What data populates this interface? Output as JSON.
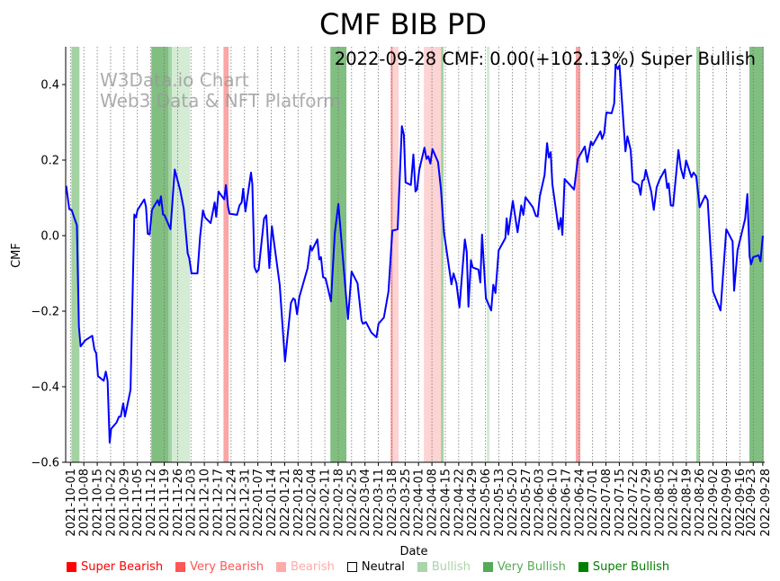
{
  "chart_data": {
    "type": "line",
    "title": "CMF BIB PD",
    "subtitle": "2022-09-28 CMF: 0.00(+102.13%) Super Bullish",
    "watermark": [
      "W3Data.io Chart",
      "Web3 Data & NFT Platform"
    ],
    "xlabel": "Date",
    "ylabel": "CMF",
    "x_unit": "days since 2021-10-01",
    "xlim": [
      -2.5,
      363
    ],
    "ylim": [
      -0.6,
      0.5
    ],
    "yticks": [
      0.4,
      0.2,
      0.0,
      -0.2,
      -0.4,
      -0.6
    ],
    "ytick_labels": [
      "0.4",
      "0.2",
      "0.0",
      "−0.2",
      "−0.4",
      "−0.6"
    ],
    "xticks": [
      0,
      7,
      14,
      21,
      28,
      35,
      42,
      49,
      56,
      63,
      70,
      77,
      84,
      91,
      98,
      105,
      112,
      119,
      126,
      133,
      140,
      147,
      154,
      161,
      168,
      175,
      182,
      189,
      196,
      203,
      210,
      217,
      224,
      231,
      238,
      245,
      252,
      259,
      266,
      273,
      280,
      287,
      294,
      301,
      308,
      315,
      322,
      329,
      336,
      343,
      350,
      357,
      362
    ],
    "xtick_labels": [
      "2021-10-01",
      "2021-10-08",
      "2021-10-15",
      "2021-10-22",
      "2021-10-29",
      "2021-11-05",
      "2021-11-12",
      "2021-11-19",
      "2021-11-26",
      "2021-12-03",
      "2021-12-10",
      "2021-12-17",
      "2021-12-24",
      "2021-12-31",
      "2022-01-07",
      "2022-01-14",
      "2022-01-21",
      "2022-01-28",
      "2022-02-04",
      "2022-02-11",
      "2022-02-18",
      "2022-02-25",
      "2022-03-04",
      "2022-03-11",
      "2022-03-18",
      "2022-03-25",
      "2022-04-01",
      "2022-04-08",
      "2022-04-15",
      "2022-04-22",
      "2022-04-29",
      "2022-05-06",
      "2022-05-13",
      "2022-05-20",
      "2022-05-27",
      "2022-06-03",
      "2022-06-10",
      "2022-06-17",
      "2022-06-24",
      "2022-07-01",
      "2022-07-08",
      "2022-07-15",
      "2022-07-22",
      "2022-07-29",
      "2022-08-05",
      "2022-08-12",
      "2022-08-19",
      "2022-08-26",
      "2022-09-02",
      "2022-09-09",
      "2022-09-16",
      "2022-09-23",
      "2022-09-28"
    ],
    "grid": "vertical dotted at x ticks",
    "series": [
      {
        "name": "CMF",
        "color": "#0000ff",
        "points": [
          [
            -2.2,
            0.132
          ],
          [
            -0.6,
            0.07
          ],
          [
            0.6,
            0.068
          ],
          [
            3.4,
            0.027
          ],
          [
            4.4,
            -0.241
          ],
          [
            5.3,
            -0.293
          ],
          [
            7.8,
            -0.277
          ],
          [
            11.4,
            -0.265
          ],
          [
            12.5,
            -0.301
          ],
          [
            13.5,
            -0.312
          ],
          [
            14.4,
            -0.372
          ],
          [
            17.4,
            -0.384
          ],
          [
            18.5,
            -0.36
          ],
          [
            19.4,
            -0.384
          ],
          [
            20.5,
            -0.548
          ],
          [
            21.3,
            -0.511
          ],
          [
            24.1,
            -0.495
          ],
          [
            25.4,
            -0.479
          ],
          [
            26.3,
            -0.479
          ],
          [
            27.6,
            -0.444
          ],
          [
            28.5,
            -0.479
          ],
          [
            31.4,
            -0.408
          ],
          [
            33.4,
            0.056
          ],
          [
            34.3,
            0.048
          ],
          [
            35.1,
            0.068
          ],
          [
            38.6,
            0.096
          ],
          [
            39.5,
            0.076
          ],
          [
            40.4,
            0.005
          ],
          [
            41.4,
            0.003
          ],
          [
            42.6,
            0.068
          ],
          [
            45.6,
            0.094
          ],
          [
            46.4,
            0.08
          ],
          [
            47.3,
            0.104
          ],
          [
            48.4,
            0.056
          ],
          [
            49.2,
            0.054
          ],
          [
            52.3,
            0.017
          ],
          [
            54.5,
            0.175
          ],
          [
            57.4,
            0.12
          ],
          [
            59.2,
            0.072
          ],
          [
            61.3,
            -0.047
          ],
          [
            62.1,
            -0.059
          ],
          [
            63.3,
            -0.1
          ],
          [
            66.4,
            -0.1
          ],
          [
            67.8,
            -0.003
          ],
          [
            69.3,
            0.067
          ],
          [
            70.4,
            0.048
          ],
          [
            73.3,
            0.033
          ],
          [
            75.4,
            0.088
          ],
          [
            76.2,
            0.05
          ],
          [
            77.4,
            0.117
          ],
          [
            80.4,
            0.096
          ],
          [
            81.3,
            0.134
          ],
          [
            82.4,
            0.076
          ],
          [
            83.2,
            0.058
          ],
          [
            87.1,
            0.055
          ],
          [
            88.4,
            0.08
          ],
          [
            89.5,
            0.088
          ],
          [
            90.3,
            0.124
          ],
          [
            91.5,
            0.064
          ],
          [
            94.4,
            0.167
          ],
          [
            95.1,
            0.136
          ],
          [
            96.2,
            -0.083
          ],
          [
            97.3,
            -0.097
          ],
          [
            98.4,
            -0.09
          ],
          [
            101.2,
            0.045
          ],
          [
            102.4,
            0.054
          ],
          [
            104.0,
            -0.086
          ],
          [
            105.3,
            0.025
          ],
          [
            109.4,
            -0.13
          ],
          [
            112.2,
            -0.333
          ],
          [
            115.3,
            -0.178
          ],
          [
            116.5,
            -0.166
          ],
          [
            117.4,
            -0.17
          ],
          [
            118.5,
            -0.208
          ],
          [
            119.7,
            -0.162
          ],
          [
            124.0,
            -0.086
          ],
          [
            125.5,
            -0.027
          ],
          [
            126.3,
            -0.039
          ],
          [
            129.1,
            -0.01
          ],
          [
            130.1,
            -0.063
          ],
          [
            131.0,
            -0.057
          ],
          [
            132.1,
            -0.11
          ],
          [
            133.4,
            -0.113
          ],
          [
            136.2,
            -0.174
          ],
          [
            138.2,
            0.005
          ],
          [
            140.1,
            0.084
          ],
          [
            145.1,
            -0.221
          ],
          [
            147.0,
            -0.095
          ],
          [
            150.1,
            -0.126
          ],
          [
            152.2,
            -0.225
          ],
          [
            152.9,
            -0.233
          ],
          [
            154.5,
            -0.229
          ],
          [
            157.4,
            -0.257
          ],
          [
            160.0,
            -0.269
          ],
          [
            161.1,
            -0.233
          ],
          [
            163.9,
            -0.217
          ],
          [
            166.3,
            -0.148
          ],
          [
            168.3,
            0.013
          ],
          [
            171.1,
            0.017
          ],
          [
            173.3,
            0.29
          ],
          [
            174.3,
            0.267
          ],
          [
            175.2,
            0.141
          ],
          [
            178.0,
            0.134
          ],
          [
            179.3,
            0.215
          ],
          [
            180.4,
            0.117
          ],
          [
            181.2,
            0.122
          ],
          [
            182.4,
            0.175
          ],
          [
            185.1,
            0.233
          ],
          [
            186.2,
            0.203
          ],
          [
            187.1,
            0.21
          ],
          [
            188.2,
            0.191
          ],
          [
            189.3,
            0.229
          ],
          [
            192.2,
            0.195
          ],
          [
            193.7,
            0.124
          ],
          [
            195.3,
            0.009
          ],
          [
            199.2,
            -0.129
          ],
          [
            200.3,
            -0.1
          ],
          [
            201.8,
            -0.126
          ],
          [
            203.4,
            -0.19
          ],
          [
            206.2,
            -0.01
          ],
          [
            207.2,
            -0.043
          ],
          [
            208.1,
            -0.188
          ],
          [
            209.4,
            -0.065
          ],
          [
            210.3,
            -0.084
          ],
          [
            213.3,
            -0.09
          ],
          [
            214.3,
            -0.124
          ],
          [
            215.2,
            0.003
          ],
          [
            217.2,
            -0.166
          ],
          [
            220.0,
            -0.198
          ],
          [
            221.1,
            -0.13
          ],
          [
            222.2,
            -0.152
          ],
          [
            223.9,
            -0.039
          ],
          [
            227.4,
            -0.007
          ],
          [
            228.1,
            0.046
          ],
          [
            228.9,
            0.003
          ],
          [
            231.3,
            0.092
          ],
          [
            233.8,
            0.009
          ],
          [
            235.7,
            0.08
          ],
          [
            236.8,
            0.055
          ],
          [
            237.9,
            0.102
          ],
          [
            241.8,
            0.075
          ],
          [
            243.4,
            0.052
          ],
          [
            244.3,
            0.051
          ],
          [
            245.4,
            0.104
          ],
          [
            247.9,
            0.16
          ],
          [
            249.2,
            0.245
          ],
          [
            250.1,
            0.207
          ],
          [
            251.1,
            0.221
          ],
          [
            252.0,
            0.136
          ],
          [
            255.3,
            0.017
          ],
          [
            256.4,
            0.047
          ],
          [
            257.2,
            0.002
          ],
          [
            258.4,
            0.15
          ],
          [
            263.3,
            0.122
          ],
          [
            265.3,
            0.203
          ],
          [
            268.9,
            0.236
          ],
          [
            270.2,
            0.195
          ],
          [
            272.1,
            0.249
          ],
          [
            273.0,
            0.239
          ],
          [
            277.1,
            0.276
          ],
          [
            278.0,
            0.256
          ],
          [
            279.1,
            0.271
          ],
          [
            280.2,
            0.326
          ],
          [
            283.0,
            0.324
          ],
          [
            284.3,
            0.35
          ],
          [
            285.0,
            0.453
          ],
          [
            286.2,
            0.441
          ],
          [
            287.1,
            0.451
          ],
          [
            290.2,
            0.223
          ],
          [
            291.2,
            0.263
          ],
          [
            292.9,
            0.227
          ],
          [
            294.0,
            0.144
          ],
          [
            297.1,
            0.134
          ],
          [
            298.1,
            0.108
          ],
          [
            299.0,
            0.145
          ],
          [
            300.0,
            0.149
          ],
          [
            300.8,
            0.174
          ],
          [
            303.7,
            0.116
          ],
          [
            305.0,
            0.068
          ],
          [
            306.5,
            0.128
          ],
          [
            308.1,
            0.149
          ],
          [
            310.9,
            0.175
          ],
          [
            312.0,
            0.126
          ],
          [
            312.8,
            0.138
          ],
          [
            313.9,
            0.08
          ],
          [
            315.1,
            0.079
          ],
          [
            317.9,
            0.227
          ],
          [
            319.1,
            0.179
          ],
          [
            320.6,
            0.152
          ],
          [
            321.9,
            0.199
          ],
          [
            324.7,
            0.155
          ],
          [
            325.8,
            0.167
          ],
          [
            327.2,
            0.157
          ],
          [
            329.0,
            0.075
          ],
          [
            331.9,
            0.106
          ],
          [
            333.2,
            0.094
          ],
          [
            336.0,
            -0.148
          ],
          [
            339.9,
            -0.198
          ],
          [
            342.9,
            0.017
          ],
          [
            346.2,
            -0.015
          ],
          [
            347.0,
            -0.146
          ],
          [
            348.8,
            -0.039
          ],
          [
            352.8,
            0.045
          ],
          [
            353.9,
            0.11
          ],
          [
            355.1,
            -0.055
          ],
          [
            355.9,
            -0.076
          ],
          [
            357.0,
            -0.057
          ],
          [
            359.8,
            -0.052
          ],
          [
            360.8,
            -0.068
          ],
          [
            362.0,
            0.0
          ]
        ]
      }
    ],
    "regime_bands": [
      {
        "start": 0.5,
        "end": 4.7,
        "regime": "Very Bullish",
        "color": "#a3d3a3"
      },
      {
        "start": 42.3,
        "end": 51.3,
        "regime": "Super Bullish",
        "color": "#80bf80"
      },
      {
        "start": 51.3,
        "end": 53.1,
        "regime": "Very Bullish",
        "color": "#a3d3a3"
      },
      {
        "start": 53.1,
        "end": 62.5,
        "regime": "Bullish",
        "color": "#d4ebd4"
      },
      {
        "start": 80.0,
        "end": 82.7,
        "regime": "Very Bearish",
        "color": "#fca5a5"
      },
      {
        "start": 135.9,
        "end": 144.3,
        "regime": "Super Bullish",
        "color": "#80bf80"
      },
      {
        "start": 167.4,
        "end": 168.6,
        "regime": "Very Bearish",
        "color": "#fca5a5"
      },
      {
        "start": 168.6,
        "end": 171.6,
        "regime": "Bearish",
        "color": "#fdd3d3"
      },
      {
        "start": 184.8,
        "end": 193.7,
        "regime": "Bearish",
        "color": "#fdd3d3"
      },
      {
        "start": 193.7,
        "end": 195.1,
        "regime": "Very Bullish",
        "color": "#a3d3a3"
      },
      {
        "start": 217.7,
        "end": 219.1,
        "regime": "Bullish",
        "color": "#d4ebd4"
      },
      {
        "start": 264.2,
        "end": 266.6,
        "regime": "Very Bearish",
        "color": "#fca5a5"
      },
      {
        "start": 327.2,
        "end": 329.1,
        "regime": "Very Bullish",
        "color": "#a3d3a3"
      },
      {
        "start": 355.0,
        "end": 362.5,
        "regime": "Super Bullish",
        "color": "#80bf80"
      }
    ],
    "legend": {
      "placement": "bottom",
      "items": [
        {
          "label": "Super Bearish",
          "color": "#ff0000"
        },
        {
          "label": "Very Bearish",
          "color": "#ff5555"
        },
        {
          "label": "Bearish",
          "color": "#ffaaaa"
        },
        {
          "label": "Neutral",
          "color": "#000000",
          "hollow": true
        },
        {
          "label": "Bullish",
          "color": "#aad4aa"
        },
        {
          "label": "Very Bullish",
          "color": "#55aa55"
        },
        {
          "label": "Super Bullish",
          "color": "#008000"
        }
      ]
    }
  }
}
